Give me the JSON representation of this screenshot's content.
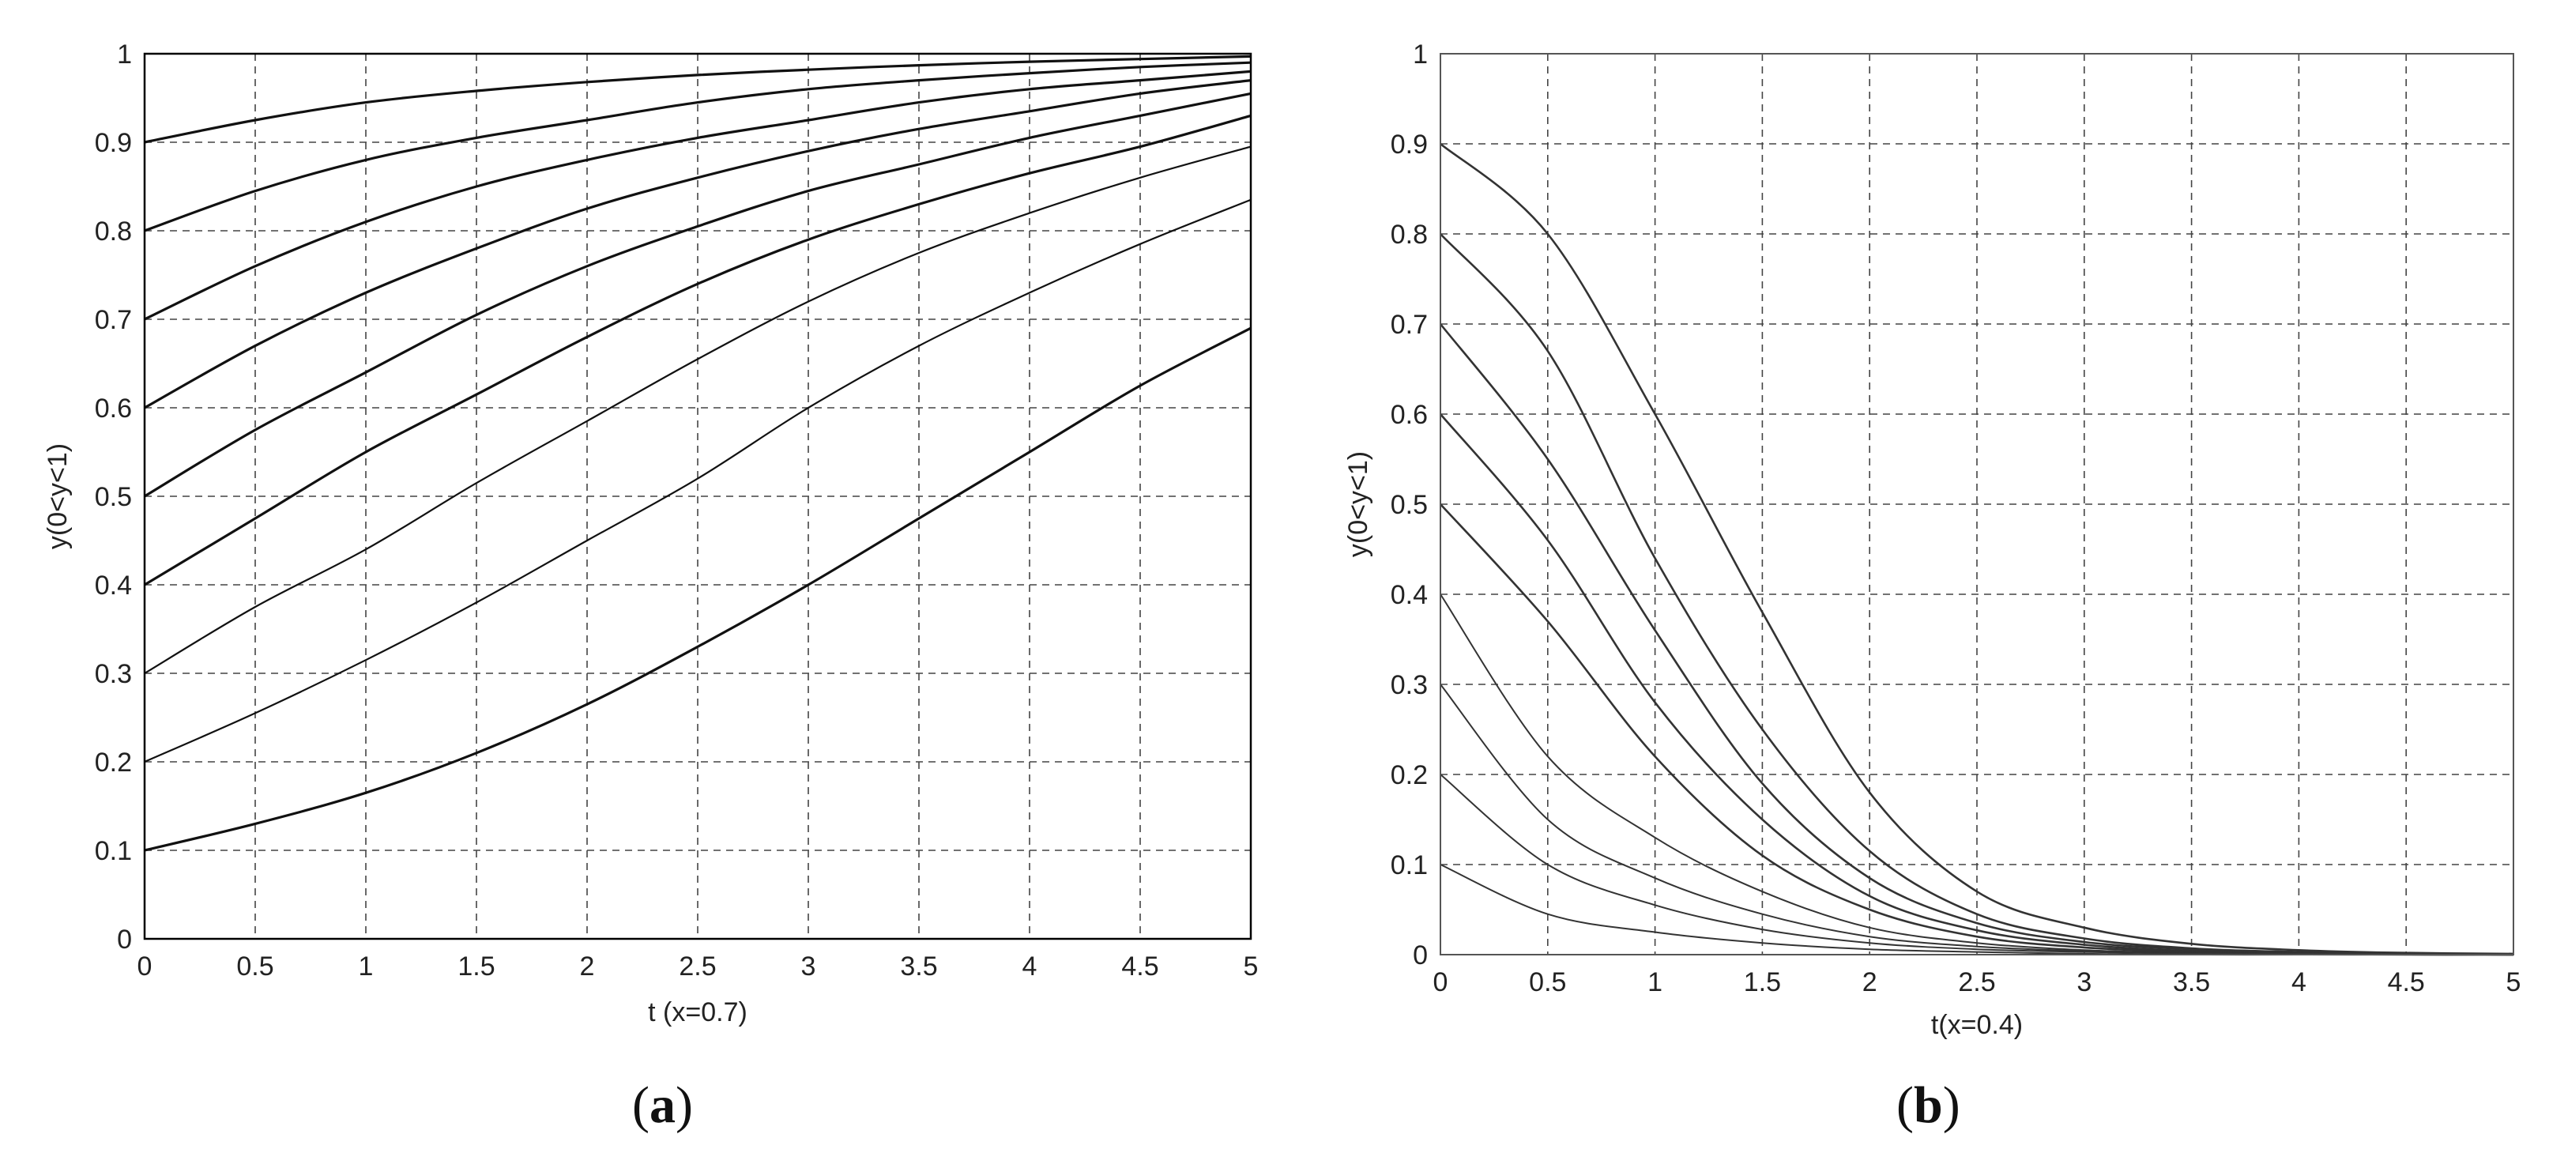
{
  "chart_data": [
    {
      "panel": "(a)",
      "panel_letter": "a",
      "type": "line",
      "xlabel": "t (x=0.7)",
      "ylabel": "y(0<y<1)",
      "xlim": [
        0,
        5
      ],
      "ylim": [
        0,
        1
      ],
      "xticks": [
        "0",
        "0.5",
        "1",
        "1.5",
        "2",
        "2.5",
        "3",
        "3.5",
        "4",
        "4.5",
        "5"
      ],
      "yticks": [
        "0",
        "0.1",
        "0.2",
        "0.3",
        "0.4",
        "0.5",
        "0.6",
        "0.7",
        "0.8",
        "0.9",
        "1"
      ],
      "grid": true,
      "x": [
        0,
        0.5,
        1,
        1.5,
        2,
        2.5,
        3,
        3.5,
        4,
        4.5,
        5
      ],
      "series": [
        {
          "values": [
            0.1,
            0.13,
            0.165,
            0.21,
            0.265,
            0.33,
            0.4,
            0.475,
            0.55,
            0.625,
            0.69
          ]
        },
        {
          "values": [
            0.2,
            0.255,
            0.315,
            0.38,
            0.45,
            0.52,
            0.6,
            0.67,
            0.73,
            0.785,
            0.835
          ]
        },
        {
          "values": [
            0.3,
            0.375,
            0.44,
            0.515,
            0.585,
            0.655,
            0.72,
            0.775,
            0.82,
            0.86,
            0.895
          ]
        },
        {
          "values": [
            0.4,
            0.475,
            0.55,
            0.615,
            0.68,
            0.74,
            0.79,
            0.83,
            0.865,
            0.895,
            0.93
          ]
        },
        {
          "values": [
            0.5,
            0.575,
            0.64,
            0.705,
            0.76,
            0.805,
            0.845,
            0.875,
            0.905,
            0.93,
            0.955
          ]
        },
        {
          "values": [
            0.6,
            0.67,
            0.73,
            0.78,
            0.825,
            0.86,
            0.89,
            0.915,
            0.935,
            0.955,
            0.97
          ]
        },
        {
          "values": [
            0.7,
            0.76,
            0.81,
            0.85,
            0.88,
            0.905,
            0.925,
            0.945,
            0.96,
            0.97,
            0.98
          ]
        },
        {
          "values": [
            0.8,
            0.845,
            0.88,
            0.905,
            0.925,
            0.945,
            0.96,
            0.97,
            0.978,
            0.985,
            0.99
          ]
        },
        {
          "values": [
            0.9,
            0.925,
            0.945,
            0.958,
            0.968,
            0.976,
            0.982,
            0.987,
            0.991,
            0.994,
            0.997
          ]
        }
      ]
    },
    {
      "panel": "(b)",
      "panel_letter": "b",
      "type": "line",
      "xlabel": "t(x=0.4)",
      "ylabel": "y(0<y<1)",
      "xlim": [
        0,
        5
      ],
      "ylim": [
        0,
        1
      ],
      "xticks": [
        "0",
        "0.5",
        "1",
        "1.5",
        "2",
        "2.5",
        "3",
        "3.5",
        "4",
        "4.5",
        "5"
      ],
      "yticks": [
        "0",
        "0.1",
        "0.2",
        "0.3",
        "0.4",
        "0.5",
        "0.6",
        "0.7",
        "0.8",
        "0.9",
        "1"
      ],
      "grid": true,
      "x": [
        0,
        0.5,
        1,
        1.5,
        2,
        2.5,
        3,
        3.5,
        4,
        4.5,
        5
      ],
      "series": [
        {
          "values": [
            0.9,
            0.8,
            0.6,
            0.38,
            0.18,
            0.07,
            0.03,
            0.012,
            0.005,
            0.002,
            0.001
          ]
        },
        {
          "values": [
            0.8,
            0.67,
            0.44,
            0.25,
            0.115,
            0.045,
            0.018,
            0.007,
            0.003,
            0.001,
            0.0
          ]
        },
        {
          "values": [
            0.7,
            0.55,
            0.36,
            0.19,
            0.085,
            0.035,
            0.014,
            0.006,
            0.002,
            0.001,
            0.0
          ]
        },
        {
          "values": [
            0.6,
            0.46,
            0.28,
            0.15,
            0.065,
            0.027,
            0.011,
            0.004,
            0.002,
            0.001,
            0.0
          ]
        },
        {
          "values": [
            0.5,
            0.37,
            0.22,
            0.11,
            0.05,
            0.02,
            0.008,
            0.003,
            0.001,
            0.0,
            0.0
          ]
        },
        {
          "values": [
            0.4,
            0.22,
            0.13,
            0.07,
            0.03,
            0.013,
            0.005,
            0.002,
            0.001,
            0.0,
            0.0
          ]
        },
        {
          "values": [
            0.3,
            0.15,
            0.085,
            0.045,
            0.02,
            0.009,
            0.004,
            0.002,
            0.001,
            0.0,
            0.0
          ]
        },
        {
          "values": [
            0.2,
            0.1,
            0.055,
            0.028,
            0.013,
            0.006,
            0.003,
            0.001,
            0.0,
            0.0,
            0.0
          ]
        },
        {
          "values": [
            0.1,
            0.045,
            0.025,
            0.013,
            0.006,
            0.003,
            0.001,
            0.0,
            0.0,
            0.0,
            0.0
          ]
        }
      ]
    }
  ]
}
